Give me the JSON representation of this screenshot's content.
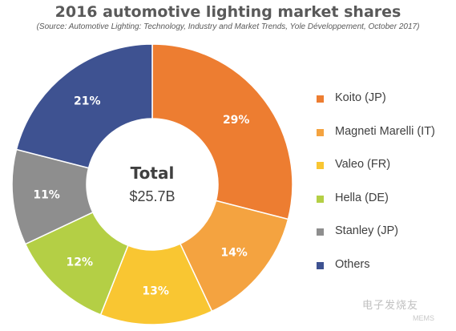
{
  "title": "2016 automotive lighting market shares",
  "subtitle": "(Source: Automotive Lighting: Technology, Industry and Market Trends, Yole Développement, October 2017)",
  "chart_data": {
    "type": "pie",
    "title": "2016 automotive lighting market shares",
    "center_label": "Total",
    "center_value": "$25.7B",
    "legend_position": "right",
    "slices": [
      {
        "name": "Koito (JP)",
        "value": 29,
        "label": "29%",
        "color": "#ED7D31"
      },
      {
        "name": "Magneti Marelli (IT)",
        "value": 14,
        "label": "14%",
        "color": "#F4A340"
      },
      {
        "name": "Valeo (FR)",
        "value": 13,
        "label": "13%",
        "color": "#F9C632"
      },
      {
        "name": "Hella (DE)",
        "value": 12,
        "label": "12%",
        "color": "#B4CF45"
      },
      {
        "name": "Stanley (JP)",
        "value": 11,
        "label": "11%",
        "color": "#8E8E8E"
      },
      {
        "name": "Others",
        "value": 21,
        "label": "21%",
        "color": "#3E5291"
      }
    ]
  },
  "watermark": {
    "text": "电子发烧友",
    "sub": "MEMS"
  }
}
